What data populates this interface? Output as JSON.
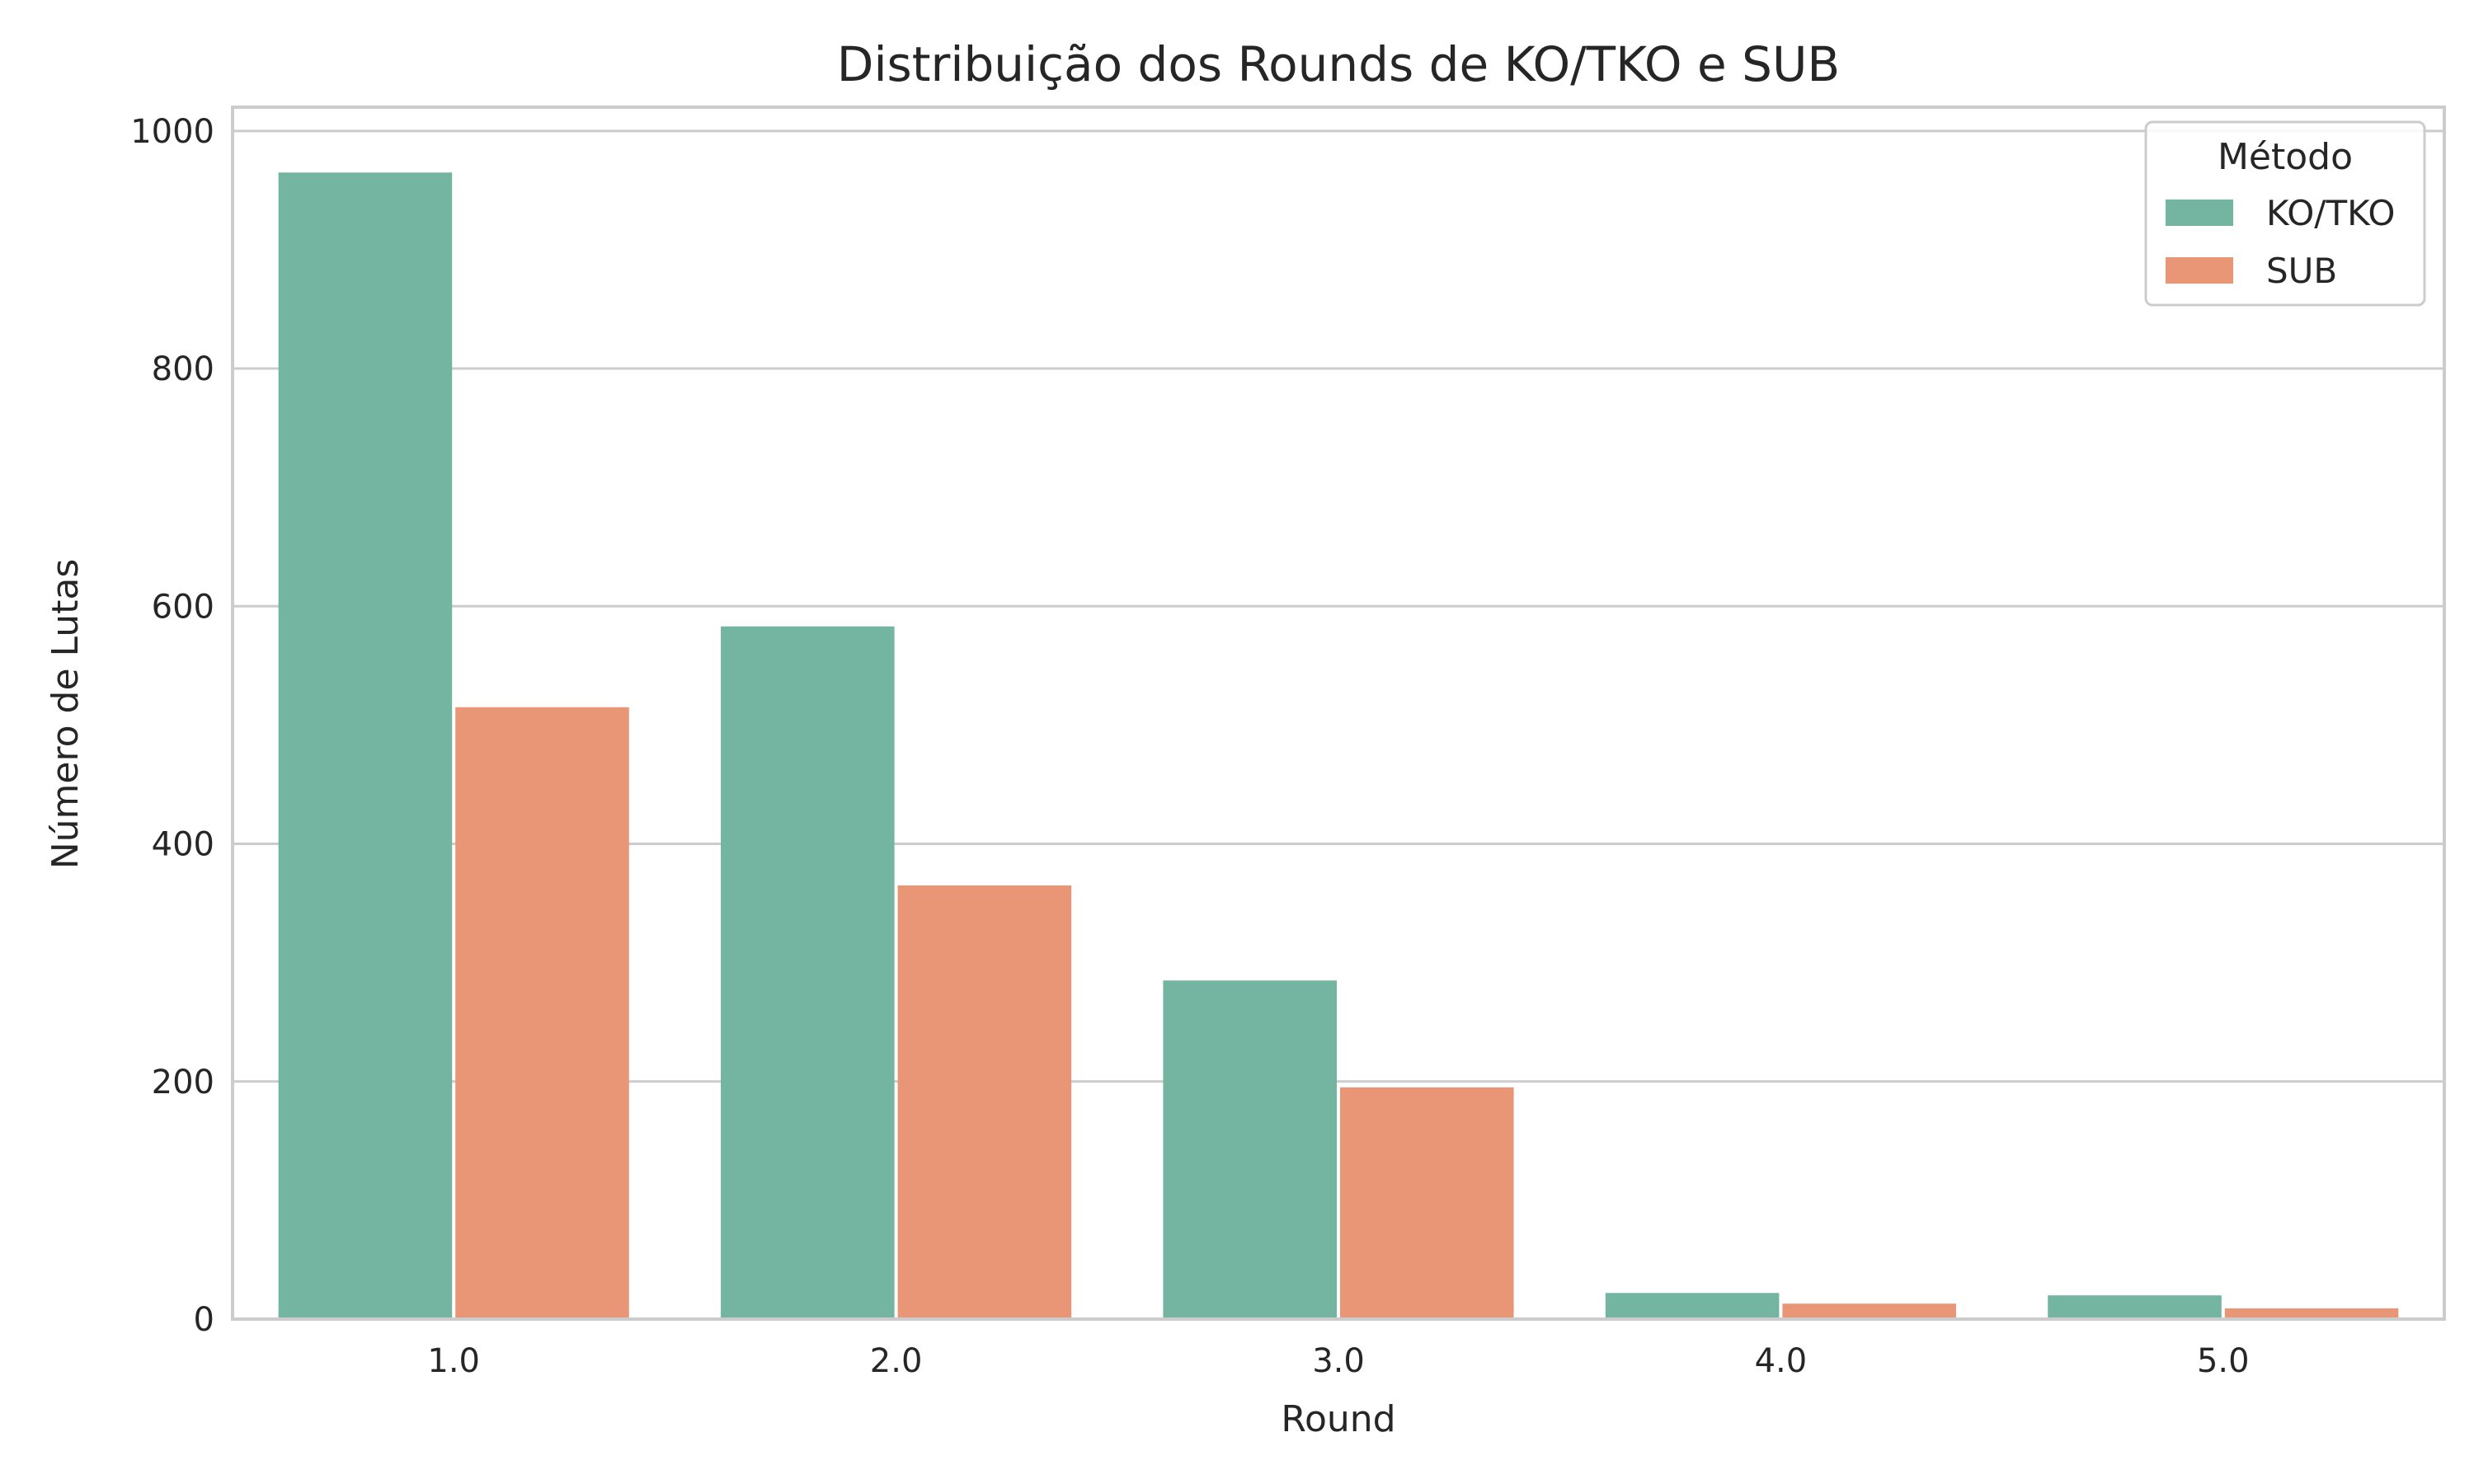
{
  "chart_data": {
    "type": "bar",
    "title": "Distribuição dos Rounds de KO/TKO e SUB",
    "xlabel": "Round",
    "ylabel": "Número de Lutas",
    "categories": [
      "1.0",
      "2.0",
      "3.0",
      "4.0",
      "5.0"
    ],
    "series": [
      {
        "name": "KO/TKO",
        "color": "#73b5a0",
        "values": [
          965,
          583,
          285,
          22,
          20
        ]
      },
      {
        "name": "SUB",
        "color": "#e89675",
        "values": [
          515,
          365,
          195,
          13,
          9
        ]
      }
    ],
    "ylim": [
      0,
      1020
    ],
    "yticks": [
      0,
      200,
      400,
      600,
      800,
      1000
    ],
    "grid": true,
    "legend": {
      "title": "Método",
      "placement": "top-right"
    }
  }
}
